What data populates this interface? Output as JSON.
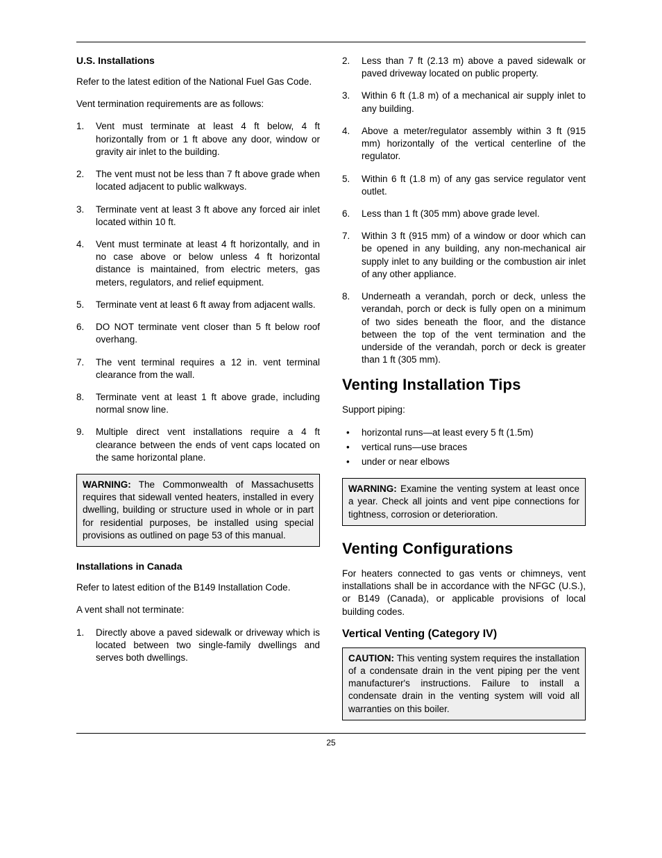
{
  "page_number": "25",
  "left": {
    "us_heading": "U.S. Installations",
    "us_p1": "Refer to the latest edition of the National Fuel Gas Code.",
    "us_p2": "Vent termination requirements are as follows:",
    "us_list": [
      "Vent must terminate at least 4 ft below, 4 ft horizontally from or 1 ft above any door, window or gravity air inlet to the building.",
      "The vent must not be less than 7 ft above grade when located adjacent to public walkways.",
      "Terminate vent at least 3 ft above any forced air inlet located within 10 ft.",
      "Vent must terminate at least 4 ft horizontally, and in no case above or below unless 4 ft horizontal distance is maintained, from electric meters, gas meters, regulators, and relief equipment.",
      "Terminate vent at least 6 ft away from adjacent walls.",
      "DO NOT terminate vent closer than 5 ft below roof overhang.",
      "The vent terminal requires a 12 in. vent terminal clearance from the wall.",
      "Terminate vent at least 1 ft above grade, including normal snow line.",
      "Multiple direct vent installations require a 4 ft clearance between the ends of vent caps located on the same horizontal plane."
    ],
    "warning_ma_lead": "WARNING:",
    "warning_ma_body": " The Commonwealth of Massachusetts requires that sidewall vented heaters, installed in every dwelling, building or structure used in whole or in part for residential purposes, be installed using special provisions as outlined on page 53 of this manual.",
    "ca_heading": "Installations in Canada",
    "ca_p1": "Refer to latest edition of the B149 Installation Code.",
    "ca_p2": "A vent shall not terminate:",
    "ca_list_first": "Directly above a paved sidewalk or driveway which is located between two single-family dwellings and serves both dwellings."
  },
  "right": {
    "ca_list_rest": [
      "Less than 7 ft (2.13 m) above a paved sidewalk or paved driveway located on public property.",
      "Within 6 ft (1.8 m) of a mechanical air supply inlet to any building.",
      "Above a meter/regulator assembly within 3 ft (915 mm) horizontally of the vertical centerline of the regulator.",
      "Within 6 ft (1.8 m) of any gas service regulator vent outlet.",
      "Less than 1 ft (305 mm) above grade level.",
      "Within 3 ft (915 mm) of a window or door which can be opened in any building, any non-mechanical air supply inlet to any building or the combustion air inlet of any other appliance.",
      "Underneath a verandah, porch or deck, unless the verandah, porch or deck is fully open on a minimum of two sides beneath the floor, and the distance between the top of the vent termination and the underside of the verandah, porch or deck is greater than 1 ft (305 mm)."
    ],
    "tips_heading": "Venting Installation Tips",
    "tips_p1": "Support piping:",
    "tips_list": [
      "horizontal runs—at least every 5 ft (1.5m)",
      "vertical runs—use braces",
      "under or near elbows"
    ],
    "warning_vent_lead": "WARNING:",
    "warning_vent_body": " Examine the venting system at least once a year. Check all joints and vent pipe connections for tightness, corrosion or deterioration.",
    "config_heading": "Venting Configurations",
    "config_p1": "For heaters connected to gas vents or chimneys, vent installations shall be in accordance with the NFGC (U.S.), or B149 (Canada), or applicable provisions of local building codes.",
    "vertical_heading": "Vertical Venting (Category IV)",
    "caution_lead": "CAUTION:",
    "caution_body": " This venting system requires the installation of a condensate drain in the vent piping per the vent manufacturer's instructions. Failure to install a condensate drain in the venting system will void all warranties on this boiler."
  }
}
